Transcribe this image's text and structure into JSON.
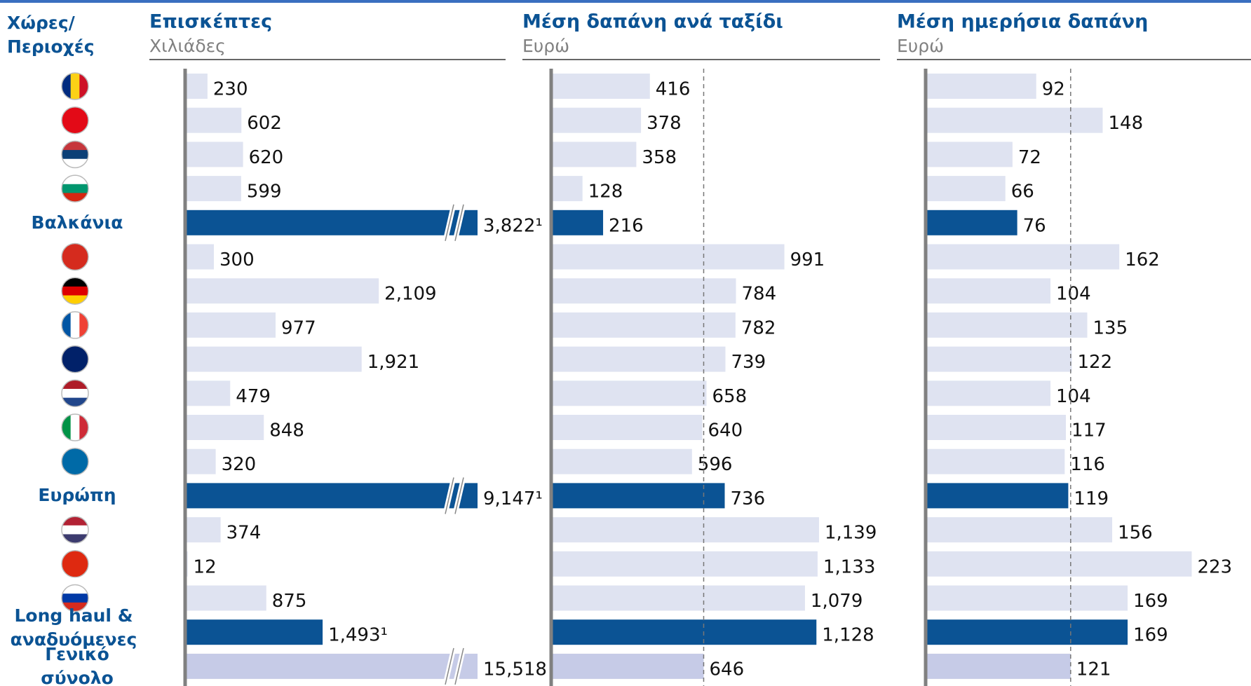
{
  "chart_data": {
    "type": "bar",
    "header": "Χώρες/ Περιοχές",
    "categories": [
      null,
      null,
      null,
      null,
      "Βαλκάνια",
      null,
      null,
      null,
      null,
      null,
      null,
      null,
      "Ευρώπη",
      null,
      null,
      null,
      "Long haul & αναδυόμενες",
      "Γενικό σύνολο"
    ],
    "colors": [
      "#dfe3f1",
      "#dfe3f1",
      "#dfe3f1",
      "#dfe3f1",
      "#0b5394",
      "#dfe3f1",
      "#dfe3f1",
      "#dfe3f1",
      "#dfe3f1",
      "#dfe3f1",
      "#dfe3f1",
      "#dfe3f1",
      "#0b5394",
      "#dfe3f1",
      "#dfe3f1",
      "#dfe3f1",
      "#0b5394",
      "#c6cbe7"
    ],
    "panels": [
      {
        "title": "Επισκέπτες",
        "subtitle": "Χιλιάδες",
        "xlim": [
          0,
          3500
        ],
        "reference_line": false,
        "values": [
          230,
          602,
          620,
          599,
          3822,
          300,
          2109,
          977,
          1921,
          479,
          848,
          320,
          9147,
          374,
          12,
          875,
          1493,
          15518
        ],
        "value_labels": [
          "230",
          "602",
          "620",
          "599",
          "3,822¹",
          "300",
          "2,109",
          "977",
          "1,921",
          "479",
          "848",
          "320",
          "9,147¹",
          "374",
          "12",
          "875",
          "1,493¹",
          "15,518"
        ]
      },
      {
        "title": "Μέση δαπάνη ανά ταξίδι",
        "subtitle": "Ευρώ",
        "xlim": [
          0,
          1400
        ],
        "reference_line": true,
        "values": [
          416,
          378,
          358,
          128,
          216,
          991,
          784,
          782,
          739,
          658,
          640,
          596,
          736,
          1139,
          1133,
          1079,
          1128,
          646
        ],
        "value_labels": [
          "416",
          "378",
          "358",
          "128",
          "216",
          "991",
          "784",
          "782",
          "739",
          "658",
          "640",
          "596",
          "736",
          "1,139",
          "1,133",
          "1,079",
          "1,128",
          "646"
        ]
      },
      {
        "title": "Μέση ημερήσια δαπάνη",
        "subtitle": "Ευρώ",
        "xlim": [
          0,
          270
        ],
        "reference_line": true,
        "values": [
          92,
          148,
          72,
          66,
          76,
          162,
          104,
          135,
          122,
          104,
          117,
          116,
          119,
          156,
          223,
          169,
          169,
          121
        ],
        "value_labels": [
          "92",
          "148",
          "72",
          "66",
          "76",
          "162",
          "104",
          "135",
          "122",
          "104",
          "117",
          "116",
          "119",
          "156",
          "223",
          "169",
          "169",
          "121"
        ]
      }
    ]
  }
}
